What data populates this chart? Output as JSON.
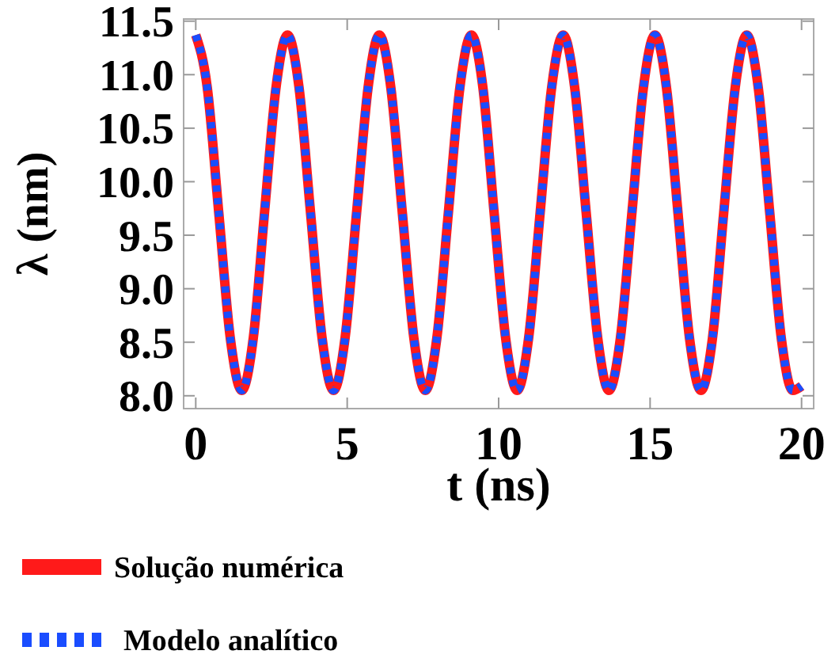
{
  "chart_data": {
    "type": "line",
    "xlabel": "t (ns)",
    "ylabel": "λ (nm)",
    "x": [
      0,
      0.38,
      0.76,
      1.14,
      1.52,
      1.9,
      2.27,
      2.65,
      3.03,
      3.41,
      3.79,
      4.17,
      4.55,
      4.93,
      5.31,
      5.69,
      6.06,
      6.44,
      6.82,
      7.2,
      7.58,
      7.96,
      8.34,
      8.72,
      9.1,
      9.48,
      9.85,
      10.23,
      10.61,
      10.99,
      11.37,
      11.75,
      12.13,
      12.51,
      12.89,
      13.27,
      13.64,
      14.02,
      14.4,
      14.78,
      15.16,
      15.54,
      15.92,
      16.3,
      16.68,
      17.06,
      17.43,
      17.81,
      18.19,
      18.57,
      18.95,
      19.33,
      19.71,
      20
    ],
    "series": [
      {
        "name": "Solução numérica",
        "color": "#ff1a1a",
        "line_style": "solid",
        "values": [
          11.37,
          10.88,
          9.71,
          8.54,
          8.05,
          8.54,
          9.71,
          10.88,
          11.37,
          10.88,
          9.71,
          8.54,
          8.05,
          8.54,
          9.71,
          10.88,
          11.37,
          10.88,
          9.71,
          8.54,
          8.05,
          8.54,
          9.71,
          10.88,
          11.37,
          10.88,
          9.71,
          8.54,
          8.05,
          8.54,
          9.71,
          10.88,
          11.37,
          10.88,
          9.71,
          8.54,
          8.05,
          8.54,
          9.71,
          10.88,
          11.37,
          10.88,
          9.71,
          8.54,
          8.05,
          8.54,
          9.71,
          10.88,
          11.37,
          10.88,
          9.71,
          8.54,
          8.05,
          8.09
        ]
      },
      {
        "name": "Modelo analítico",
        "color": "#1a4dff",
        "line_style": "dotted",
        "values": [
          11.37,
          10.88,
          9.71,
          8.54,
          8.05,
          8.54,
          9.71,
          10.88,
          11.37,
          10.88,
          9.71,
          8.54,
          8.05,
          8.54,
          9.71,
          10.88,
          11.37,
          10.88,
          9.71,
          8.54,
          8.05,
          8.54,
          9.71,
          10.88,
          11.37,
          10.88,
          9.71,
          8.54,
          8.05,
          8.54,
          9.71,
          10.88,
          11.37,
          10.88,
          9.71,
          8.54,
          8.05,
          8.54,
          9.71,
          10.88,
          11.37,
          10.88,
          9.71,
          8.54,
          8.05,
          8.54,
          9.71,
          10.88,
          11.37,
          10.88,
          9.71,
          8.54,
          8.05,
          8.09
        ]
      }
    ],
    "xlim": [
      -0.4,
      20.4
    ],
    "xticks": [
      0,
      5,
      10,
      15,
      20
    ],
    "ylim": [
      7.88,
      11.52
    ],
    "yticks": [
      {
        "value": 8,
        "label": "8.0"
      },
      8.5,
      {
        "value": 9,
        "label": "9.0"
      },
      9.5,
      {
        "value": 10,
        "label": "10.0"
      },
      10.5,
      {
        "value": 11,
        "label": "11.0"
      },
      11.5
    ],
    "grid": false,
    "legend": "bottom left"
  }
}
